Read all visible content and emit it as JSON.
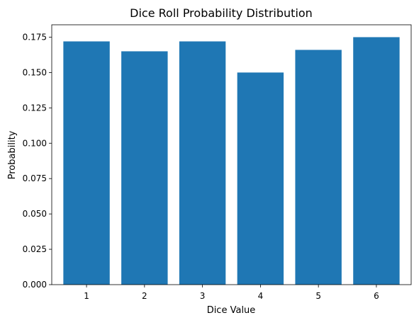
{
  "chart_data": {
    "type": "bar",
    "title": "Dice Roll Probability Distribution",
    "xlabel": "Dice Value",
    "ylabel": "Probability",
    "categories": [
      "1",
      "2",
      "3",
      "4",
      "5",
      "6"
    ],
    "values": [
      0.172,
      0.165,
      0.172,
      0.15,
      0.166,
      0.175
    ],
    "ylim": [
      0,
      0.18375
    ],
    "yticks": [
      "0.000",
      "0.025",
      "0.050",
      "0.075",
      "0.100",
      "0.125",
      "0.150",
      "0.175"
    ],
    "grid": false,
    "bar_color": "#1f77b4"
  }
}
